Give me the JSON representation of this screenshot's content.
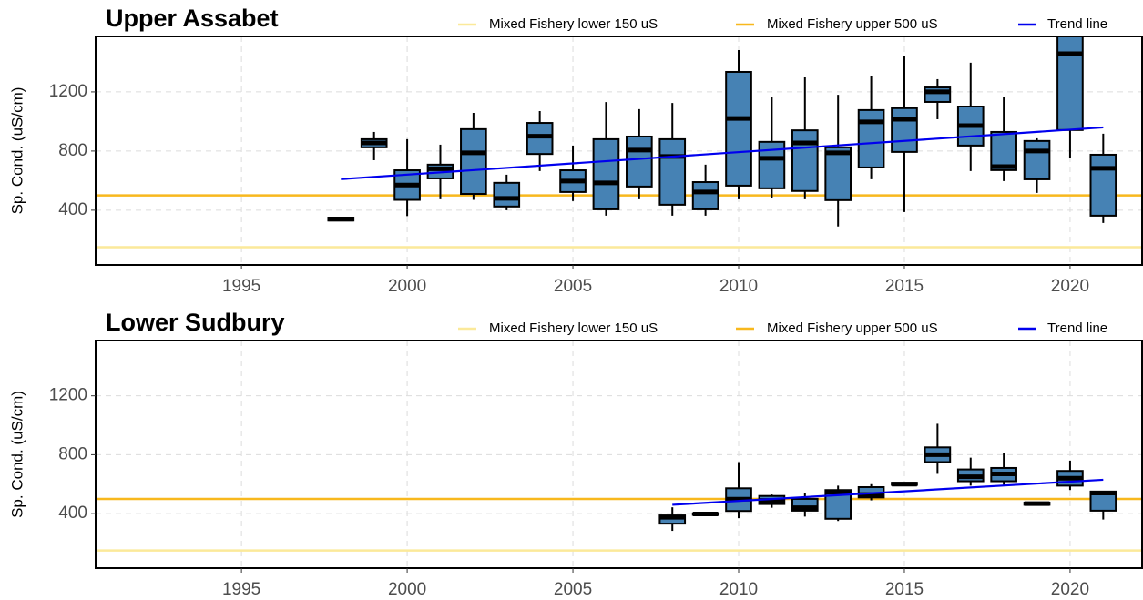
{
  "chart_data": [
    {
      "type": "box",
      "title": "Upper Assabet",
      "ylabel": "Sp. Cond. (uS/cm)",
      "color": "#4682b4",
      "grid": true,
      "xlim": [
        1990.6,
        2022.2
      ],
      "xticks": [
        1995,
        2000,
        2005,
        2010,
        2015,
        2020
      ],
      "ylim": [
        30,
        1575
      ],
      "yticks": [
        400,
        800,
        1200
      ],
      "x": [
        1998,
        1999,
        2000,
        2001,
        2002,
        2003,
        2004,
        2005,
        2006,
        2007,
        2008,
        2009,
        2010,
        2011,
        2012,
        2013,
        2014,
        2015,
        2016,
        2017,
        2018,
        2019,
        2020,
        2021
      ],
      "low": [
        330,
        738,
        360,
        474,
        470,
        400,
        665,
        462,
        363,
        474,
        363,
        363,
        474,
        480,
        474,
        290,
        609,
        388,
        1015,
        665,
        597,
        517,
        751,
        314
      ],
      "q1": [
        330,
        825,
        470,
        615,
        510,
        425,
        780,
        523,
        406,
        560,
        437,
        406,
        566,
        548,
        530,
        468,
        689,
        794,
        1132,
        837,
        671,
        609,
        942,
        363
      ],
      "median": [
        340,
        855,
        570,
        680,
        788,
        480,
        900,
        597,
        585,
        806,
        763,
        523,
        1020,
        751,
        855,
        788,
        997,
        1015,
        1200,
        972,
        695,
        800,
        1458,
        683
      ],
      "q3": [
        350,
        880,
        670,
        708,
        948,
        585,
        990,
        670,
        880,
        898,
        880,
        590,
        1335,
        862,
        940,
        825,
        1077,
        1090,
        1230,
        1101,
        929,
        868,
        1620,
        775
      ],
      "high": [
        350,
        929,
        880,
        843,
        1058,
        640,
        1070,
        837,
        1131,
        1083,
        1125,
        708,
        1483,
        1163,
        1298,
        1180,
        1310,
        1440,
        1286,
        1397,
        1163,
        886,
        1700,
        917
      ],
      "hlines": [
        {
          "name": "Mixed Fishery lower 150 uS",
          "value": 150,
          "color": "#fbe99a"
        },
        {
          "name": "Mixed Fishery upper 500 uS",
          "value": 500,
          "color": "#f8b81d"
        }
      ],
      "trend": {
        "name": "Trend line",
        "color": "#0000ee",
        "x": [
          1998,
          2021
        ],
        "values": [
          610,
          960
        ]
      }
    },
    {
      "type": "box",
      "title": "Lower Sudbury",
      "ylabel": "Sp. Cond. (uS/cm)",
      "color": "#4682b4",
      "grid": true,
      "xlim": [
        1990.6,
        2022.2
      ],
      "xticks": [
        1995,
        2000,
        2005,
        2010,
        2015,
        2020
      ],
      "ylim": [
        30,
        1575
      ],
      "yticks": [
        400,
        800,
        1200
      ],
      "x": [
        2008,
        2009,
        2010,
        2011,
        2012,
        2013,
        2014,
        2015,
        2016,
        2017,
        2018,
        2019,
        2020,
        2021
      ],
      "low": [
        283,
        392,
        369,
        440,
        380,
        350,
        490,
        595,
        670,
        590,
        590,
        460,
        560,
        360
      ],
      "q1": [
        332,
        392,
        418,
        465,
        420,
        365,
        510,
        595,
        750,
        620,
        620,
        460,
        590,
        420
      ],
      "median": [
        375,
        398,
        498,
        490,
        440,
        545,
        530,
        600,
        800,
        650,
        670,
        468,
        640,
        540
      ],
      "q3": [
        388,
        402,
        572,
        520,
        500,
        560,
        580,
        610,
        850,
        700,
        710,
        475,
        690,
        550
      ],
      "high": [
        443,
        402,
        750,
        530,
        540,
        590,
        600,
        610,
        1010,
        780,
        810,
        475,
        760,
        550
      ],
      "hlines": [
        {
          "name": "Mixed Fishery lower 150 uS",
          "value": 150,
          "color": "#fbe99a"
        },
        {
          "name": "Mixed Fishery upper 500 uS",
          "value": 500,
          "color": "#f8b81d"
        }
      ],
      "trend": {
        "name": "Trend line",
        "color": "#0000ee",
        "x": [
          2008,
          2021
        ],
        "values": [
          460,
          630
        ]
      }
    }
  ]
}
